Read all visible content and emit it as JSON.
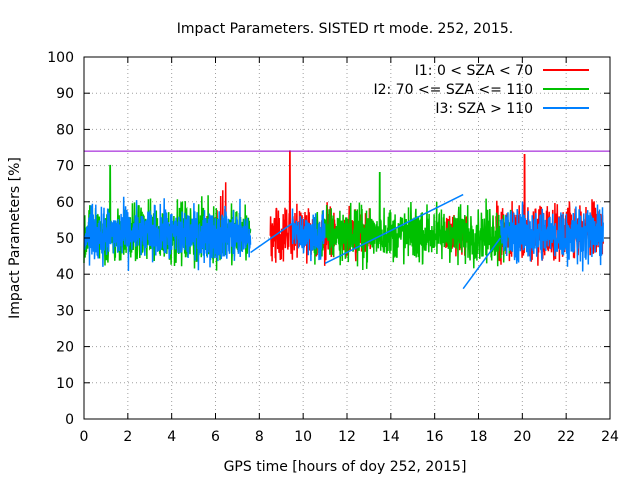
{
  "chart_data": {
    "type": "line",
    "title": "Impact Parameters. SISTED rt mode. 252, 2015.",
    "xlabel": "GPS time [hours of doy 252, 2015]",
    "ylabel": "Impact Parameters [%]",
    "xlim": [
      0,
      24
    ],
    "ylim": [
      0,
      100
    ],
    "xticks": [
      "0",
      "2",
      "4",
      "6",
      "8",
      "10",
      "12",
      "14",
      "16",
      "18",
      "20",
      "22",
      "24"
    ],
    "yticks": [
      "0",
      "10",
      "20",
      "30",
      "40",
      "50",
      "60",
      "70",
      "80",
      "90",
      "100"
    ],
    "grid": true,
    "legend_position": "top-right",
    "reference_line": {
      "y": 74,
      "color": "#9400d3"
    },
    "series": [
      {
        "name": "I1: 0 < SZA < 70",
        "color": "#ff0000",
        "segments": [
          {
            "x_start": 5.6,
            "x_end": 6.5,
            "center": 51,
            "spread": 9,
            "ramp_to": 66
          },
          {
            "x_start": 8.5,
            "x_end": 11.5,
            "center": 51,
            "spread": 11,
            "spike_x": 9.4,
            "spike_y": 74
          },
          {
            "x_start": 11.8,
            "x_end": 13.2,
            "center": 51,
            "spread": 9
          },
          {
            "x_start": 16.5,
            "x_end": 17.5,
            "center": 51,
            "spread": 8
          },
          {
            "x_start": 18.8,
            "x_end": 23.7,
            "center": 51,
            "spread": 12,
            "spike_x": 20.1,
            "spike_y": 73
          }
        ]
      },
      {
        "name": "I2: 70 <= SZA <= 110",
        "color": "#00c000",
        "segments": [
          {
            "x_start": 0.0,
            "x_end": 7.6,
            "center": 51,
            "spread": 12,
            "spike_x": 1.2,
            "spike_y": 70
          },
          {
            "x_start": 10.5,
            "x_end": 19.5,
            "center": 51,
            "spread": 11,
            "spike_x": 13.5,
            "spike_y": 68
          }
        ]
      },
      {
        "name": "I3: SZA > 110",
        "color": "#0080ff",
        "segments": [
          {
            "x_start": 0.0,
            "x_end": 7.6,
            "center": 51,
            "spread": 11
          },
          {
            "x_start": 9.5,
            "x_end": 11.0,
            "center": 51,
            "spread": 9
          },
          {
            "x_start": 19.0,
            "x_end": 23.7,
            "center": 51,
            "spread": 11
          }
        ],
        "connectors": [
          {
            "x1": 7.6,
            "y1": 46,
            "x2": 9.5,
            "y2": 54
          },
          {
            "x1": 11.0,
            "y1": 43,
            "x2": 17.3,
            "y2": 62
          },
          {
            "x1": 17.3,
            "y1": 36,
            "x2": 19.0,
            "y2": 50
          }
        ]
      }
    ]
  }
}
